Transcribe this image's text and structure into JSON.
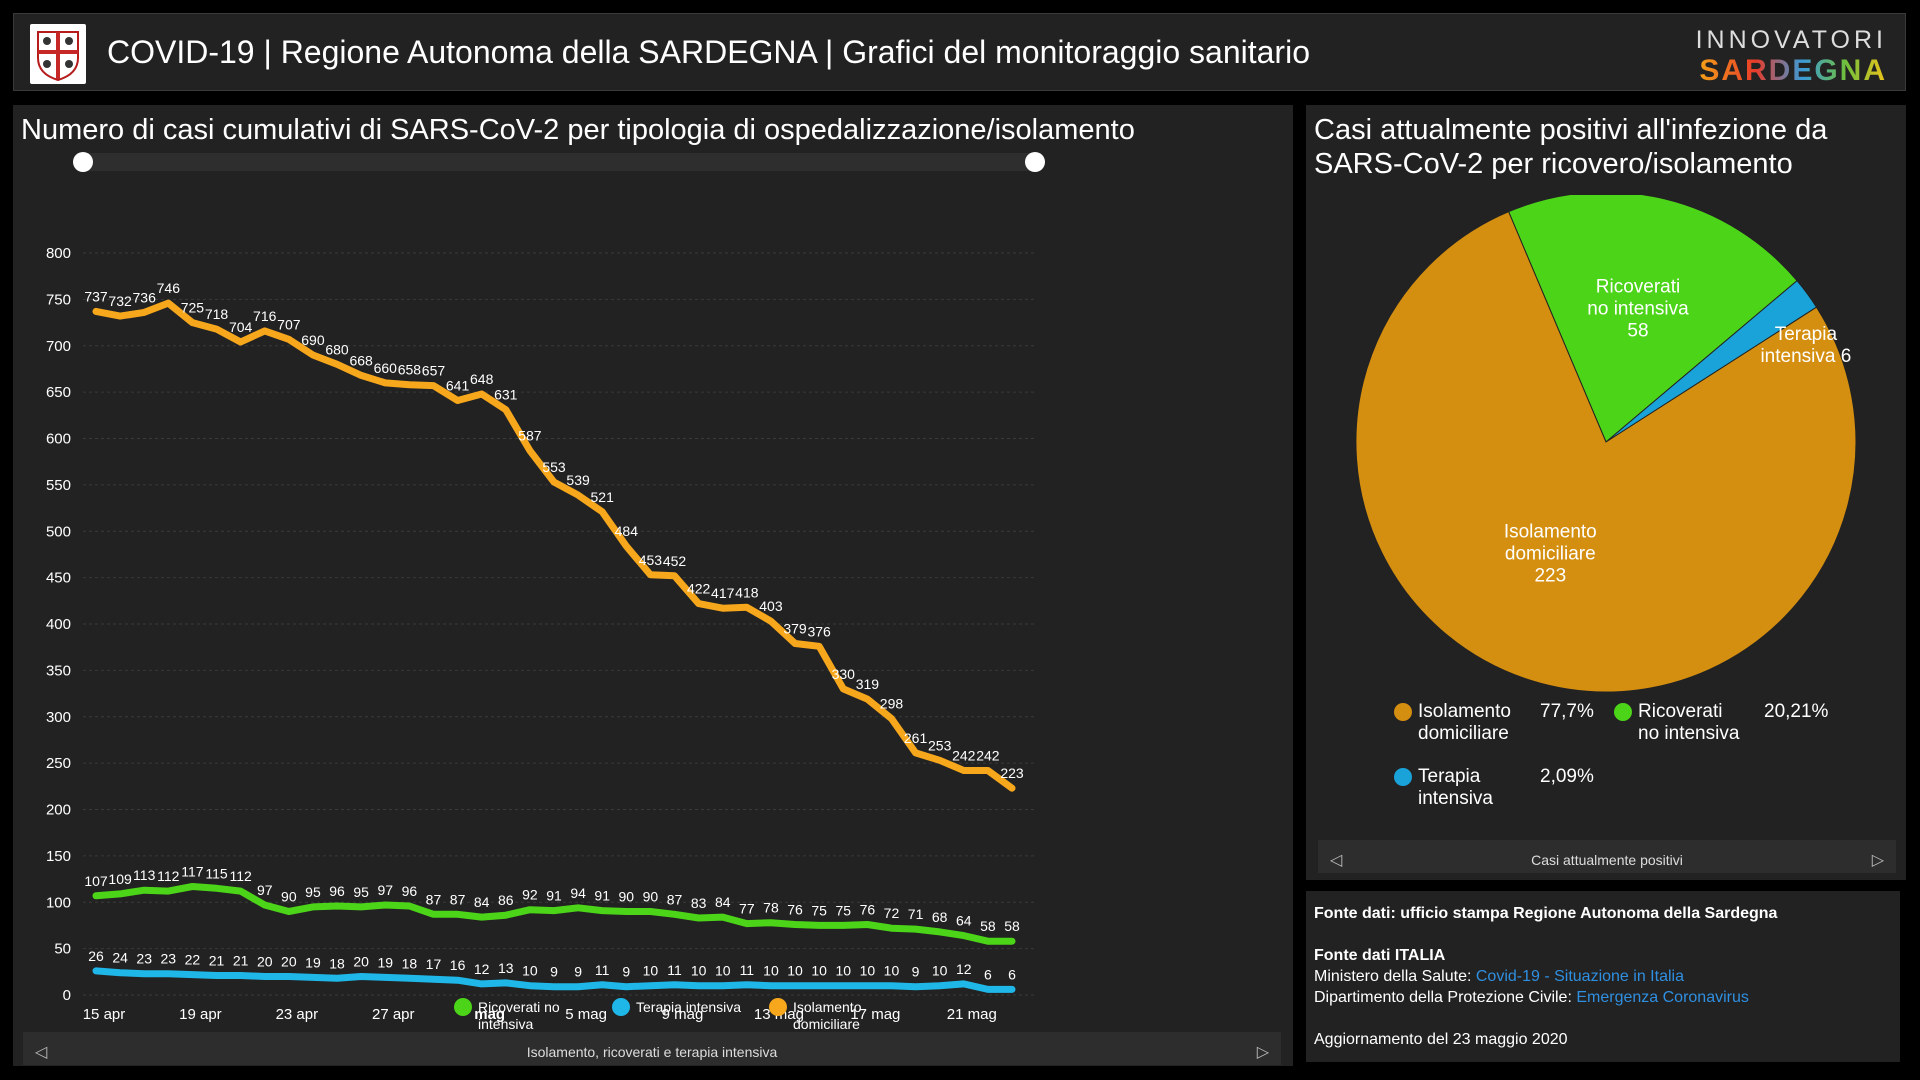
{
  "header": {
    "title": "COVID-19 | Regione Autonoma della SARDEGNA | Grafici del monitoraggio sanitario",
    "brand_top": "INNOVATORI",
    "brand_bottom": "SARDEGNA"
  },
  "line_panel": {
    "title": "Numero di casi cumulativi di SARS-CoV-2 per tipologia di ospedalizzazione/isolamento",
    "footer_label": "Isolamento, ricoverati e terapia intensiva"
  },
  "pie_panel": {
    "title_line1": "Casi attualmente positivi all'infezione da",
    "title_line2": "SARS-CoV-2 per ricovero/isolamento",
    "footer_label": "Casi attualmente positivi",
    "legend": [
      {
        "name_line1": "Isolamento",
        "name_line2": "domiciliare",
        "pct": "77,7%"
      },
      {
        "name_line1": "Ricoverati",
        "name_line2": "no intensiva",
        "pct": "20,21%"
      },
      {
        "name_line1": "Terapia",
        "name_line2": "intensiva",
        "pct": "2,09%"
      }
    ]
  },
  "sources": {
    "line1": "Fonte dati: ufficio stampa Regione Autonoma della Sardegna",
    "line2": "Fonte dati ITALIA",
    "line3_prefix": "Ministero della Salute: ",
    "line3_link": "Covid-19 - Situazione in Italia",
    "line4_prefix": "Dipartimento della Protezione Civile: ",
    "line4_link": "Emergenza Coronavirus",
    "line5": "Aggiornamento del 23 maggio 2020"
  },
  "colors": {
    "ricoverati": "#4cd419",
    "terapia": "#1fb7e8",
    "isolamento": "#f7a71c",
    "pie_isolamento": "#d58f10",
    "pie_ricoverati": "#4cd419",
    "pie_terapia": "#1aa3d9"
  },
  "chart_data": [
    {
      "type": "line",
      "ylim": [
        0,
        800
      ],
      "yticks": [
        0,
        50,
        100,
        150,
        200,
        250,
        300,
        350,
        400,
        450,
        500,
        550,
        600,
        650,
        700,
        750,
        800
      ],
      "x_tick_labels": [
        "15 apr",
        "19 apr",
        "23 apr",
        "27 apr",
        "mag",
        "5 mag",
        "9 mag",
        "13 mag",
        "17 mag",
        "21 mag"
      ],
      "x": [
        "15 apr",
        "16 apr",
        "17 apr",
        "18 apr",
        "19 apr",
        "20 apr",
        "21 apr",
        "22 apr",
        "23 apr",
        "24 apr",
        "25 apr",
        "26 apr",
        "27 apr",
        "28 apr",
        "29 apr",
        "30 apr",
        "1 mag",
        "2 mag",
        "3 mag",
        "4 mag",
        "5 mag",
        "6 mag",
        "7 mag",
        "8 mag",
        "9 mag",
        "10 mag",
        "11 mag",
        "12 mag",
        "13 mag",
        "14 mag",
        "15 mag",
        "16 mag",
        "17 mag",
        "18 mag",
        "19 mag",
        "20 mag",
        "21 mag",
        "22 mag",
        "23 mag"
      ],
      "series": [
        {
          "name": "Ricoverati no intensiva",
          "values": [
            107,
            109,
            113,
            112,
            117,
            115,
            112,
            97,
            90,
            95,
            96,
            95,
            97,
            96,
            87,
            87,
            84,
            86,
            92,
            91,
            94,
            91,
            90,
            90,
            87,
            83,
            84,
            77,
            78,
            76,
            75,
            75,
            76,
            72,
            71,
            68,
            64,
            58,
            58
          ]
        },
        {
          "name": "Terapia intensiva",
          "values": [
            26,
            24,
            23,
            23,
            22,
            21,
            21,
            20,
            20,
            19,
            18,
            20,
            19,
            18,
            17,
            16,
            12,
            13,
            10,
            9,
            9,
            11,
            9,
            10,
            11,
            10,
            10,
            11,
            10,
            10,
            10,
            10,
            10,
            10,
            9,
            10,
            12,
            6,
            6
          ]
        },
        {
          "name": "Isolamento domiciliare",
          "values": [
            737,
            732,
            736,
            746,
            725,
            718,
            704,
            716,
            707,
            690,
            680,
            668,
            660,
            658,
            657,
            641,
            648,
            631,
            587,
            553,
            539,
            521,
            484,
            453,
            452,
            422,
            417,
            418,
            403,
            379,
            376,
            330,
            319,
            298,
            261,
            253,
            242,
            242,
            223
          ]
        }
      ]
    },
    {
      "type": "pie",
      "slices": [
        {
          "label_line1": "Isolamento",
          "label_line2": "domiciliare",
          "value": 223
        },
        {
          "label_line1": "Ricoverati",
          "label_line2": "no intensiva",
          "value": 58
        },
        {
          "label_line1": "Terapia",
          "label_line2": "intensiva",
          "value": 6
        }
      ]
    }
  ]
}
